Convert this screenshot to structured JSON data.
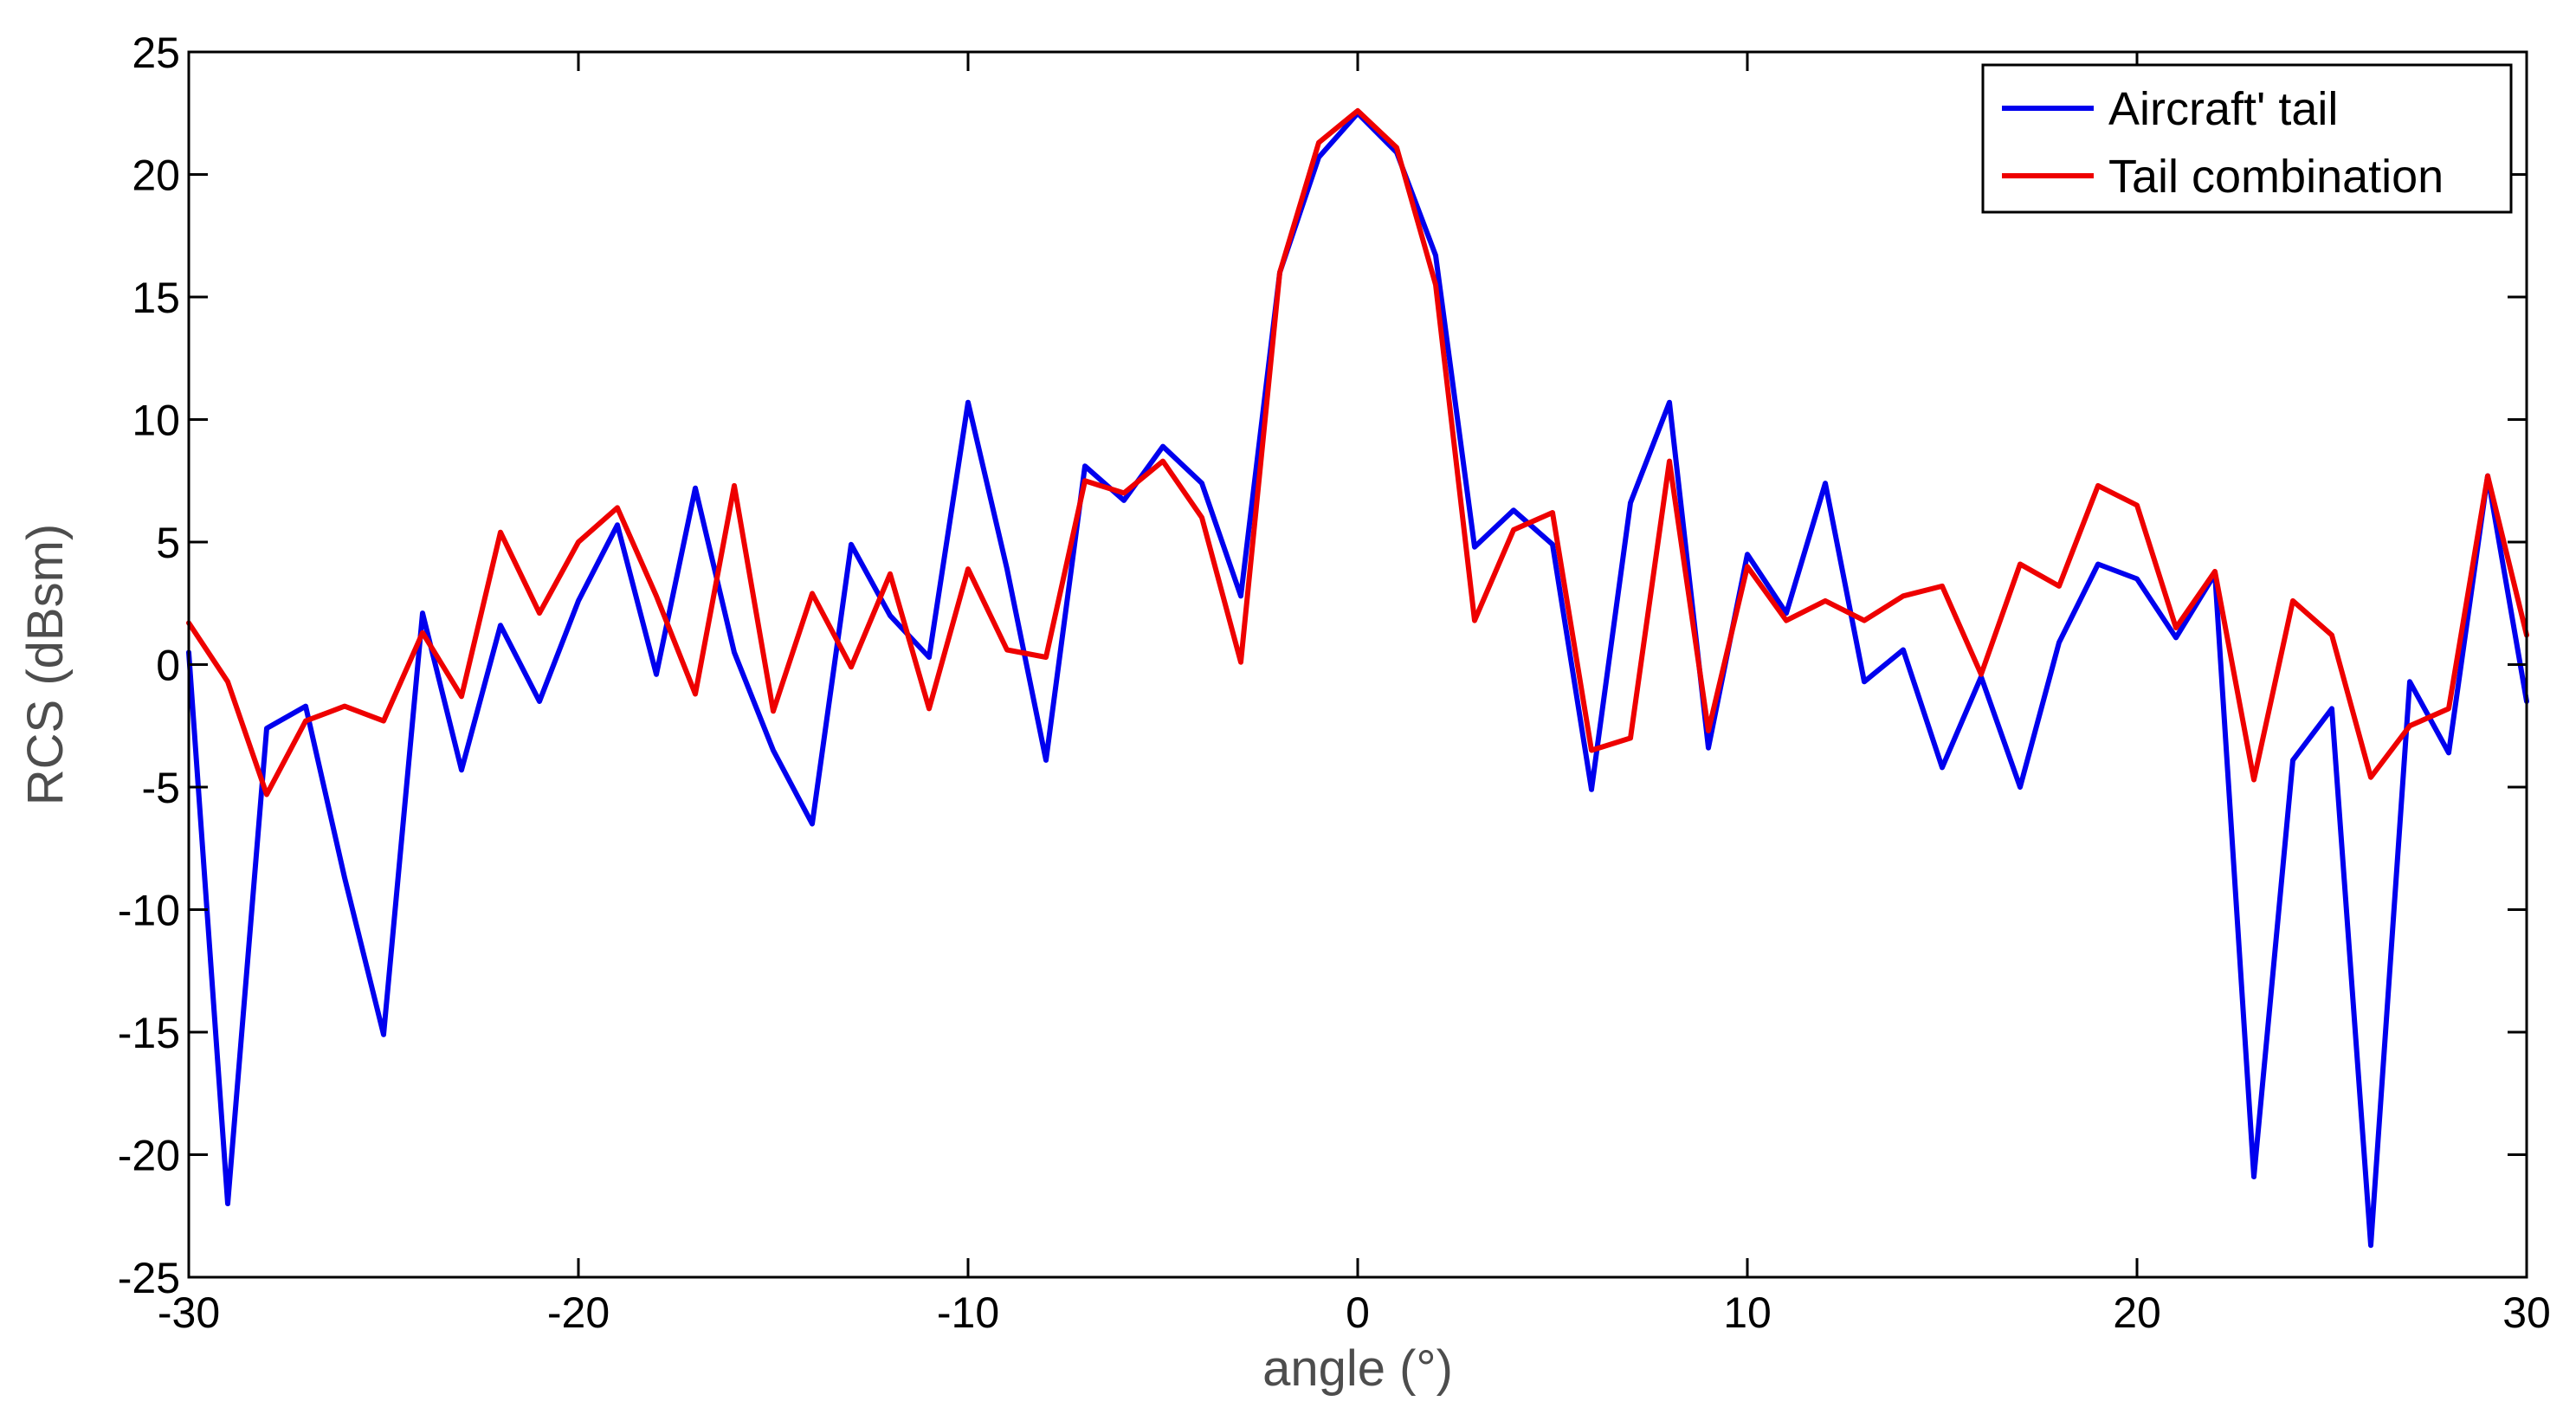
{
  "chart_data": {
    "type": "line",
    "title": "",
    "xlabel": "angle (°)",
    "ylabel": "RCS (dBsm)",
    "xlim": [
      -30,
      30
    ],
    "ylim": [
      -25,
      25
    ],
    "xticks": [
      -30,
      -20,
      -10,
      0,
      10,
      20,
      30
    ],
    "yticks": [
      25,
      20,
      15,
      10,
      5,
      0,
      -5,
      -10,
      -15,
      -20,
      -25
    ],
    "grid": false,
    "legend_position": "top-right",
    "x": [
      -30,
      -29,
      -28,
      -27,
      -26,
      -25,
      -24,
      -23,
      -22,
      -21,
      -20,
      -19,
      -18,
      -17,
      -16,
      -15,
      -14,
      -13,
      -12,
      -11,
      -10,
      -9,
      -8,
      -7,
      -6,
      -5,
      -4,
      -3,
      -2,
      -1,
      0,
      1,
      2,
      3,
      4,
      5,
      6,
      7,
      8,
      9,
      10,
      11,
      12,
      13,
      14,
      15,
      16,
      17,
      18,
      19,
      20,
      21,
      22,
      23,
      24,
      25,
      26,
      27,
      28,
      29,
      30
    ],
    "series": [
      {
        "name": "Aircraft' tail",
        "color": "#0000ee",
        "values": [
          0.5,
          -22,
          -2.6,
          -1.7,
          -8.7,
          -15.1,
          2.1,
          -4.3,
          1.6,
          -1.5,
          2.6,
          5.7,
          -0.4,
          7.2,
          0.5,
          -3.5,
          -6.5,
          4.9,
          2.0,
          0.3,
          10.7,
          3.9,
          -3.9,
          8.1,
          6.7,
          8.9,
          7.4,
          2.8,
          16,
          20.7,
          22.5,
          20.9,
          16.7,
          4.8,
          6.3,
          4.9,
          -5.1,
          6.6,
          10.7,
          -3.4,
          4.5,
          2.1,
          7.4,
          -0.7,
          0.6,
          -4.2,
          -0.5,
          -5.0,
          0.9,
          4.1,
          3.5,
          1.1,
          3.7,
          -20.9,
          -3.9,
          -1.8,
          -23.7,
          -0.7,
          -3.6,
          7.7,
          -1.5
        ]
      },
      {
        "name": "Tail combination",
        "color": "#ee0000",
        "values": [
          1.7,
          -0.7,
          -5.3,
          -2.3,
          -1.7,
          -2.3,
          1.3,
          -1.3,
          5.4,
          2.1,
          5.0,
          6.4,
          2.8,
          -1.2,
          7.3,
          -1.9,
          2.9,
          -0.1,
          3.7,
          -1.8,
          3.9,
          0.6,
          0.3,
          7.5,
          7.0,
          8.3,
          6.0,
          0.1,
          16,
          21.3,
          22.6,
          21.1,
          15.5,
          1.8,
          5.5,
          6.2,
          -3.5,
          -3.0,
          8.3,
          -2.7,
          4.0,
          1.8,
          2.6,
          1.8,
          2.8,
          3.2,
          -0.4,
          4.1,
          3.2,
          7.3,
          6.5,
          1.5,
          3.8,
          -4.7,
          2.6,
          1.2,
          -4.6,
          -2.5,
          -1.8,
          7.7,
          1.2
        ]
      }
    ]
  }
}
